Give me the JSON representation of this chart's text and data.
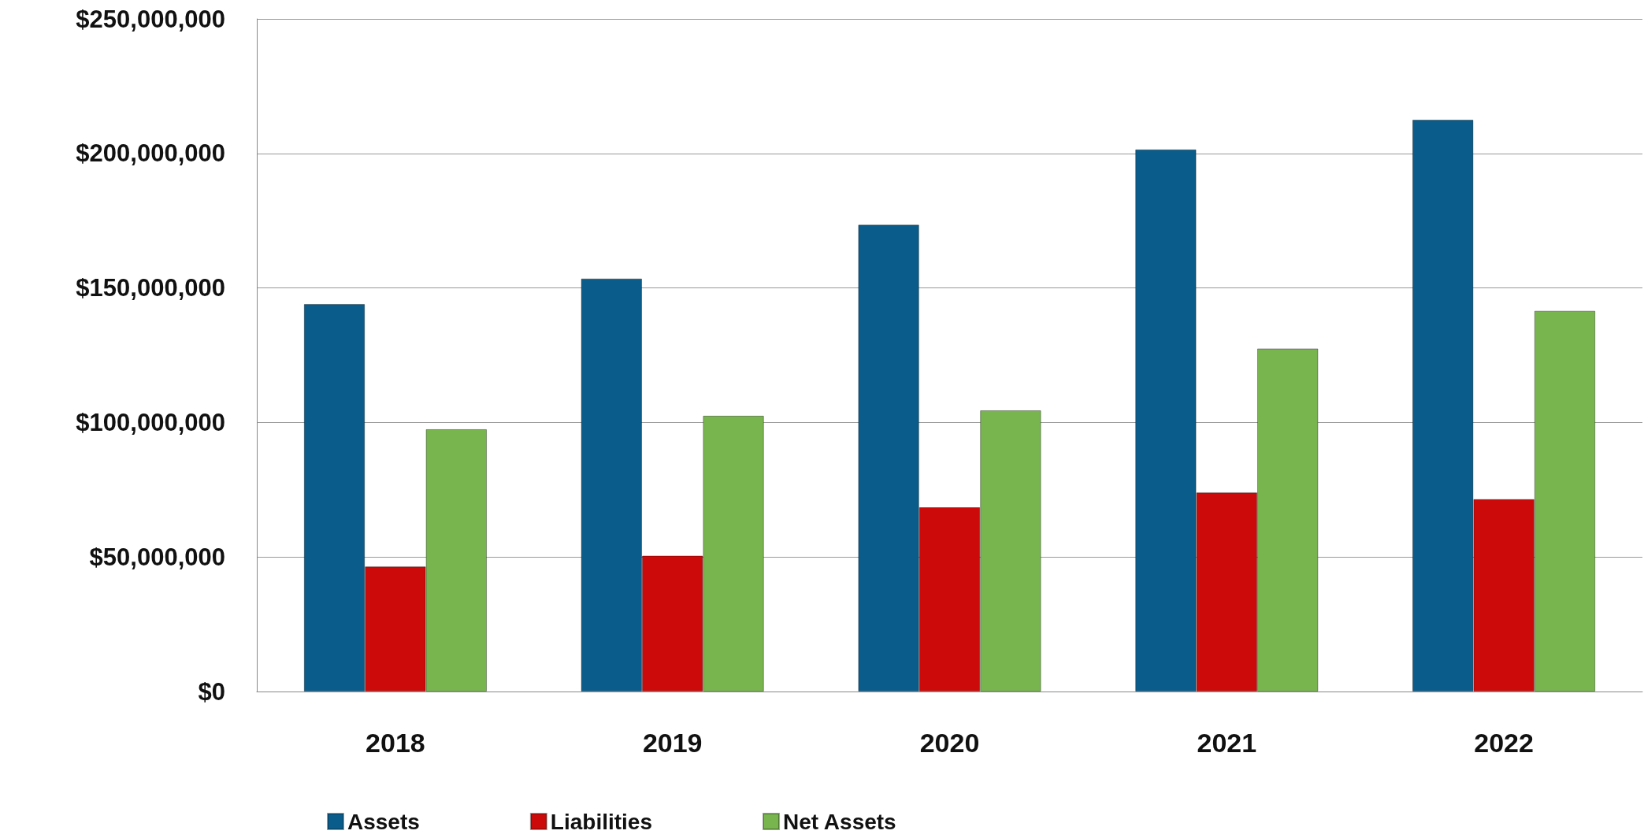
{
  "chart_data": {
    "type": "bar",
    "categories": [
      "2018",
      "2019",
      "2020",
      "2021",
      "2022"
    ],
    "series": [
      {
        "name": "Assets",
        "color": "#0a5c8a",
        "values": [
          144000000,
          153500000,
          173500000,
          201500000,
          212500000
        ]
      },
      {
        "name": "Liabilities",
        "color": "#cc0a0a",
        "values": [
          46500000,
          50500000,
          68500000,
          74000000,
          71500000
        ]
      },
      {
        "name": "Net Assets",
        "color": "#78b54e",
        "values": [
          97500000,
          102500000,
          104500000,
          127500000,
          141500000
        ]
      }
    ],
    "ylim": [
      0,
      250000000
    ],
    "yticks": [
      {
        "value": 0,
        "label": "$0"
      },
      {
        "value": 50000000,
        "label": "$50,000,000"
      },
      {
        "value": 100000000,
        "label": "$100,000,000"
      },
      {
        "value": 150000000,
        "label": "$150,000,000"
      },
      {
        "value": 200000000,
        "label": "$200,000,000"
      },
      {
        "value": 250000000,
        "label": "$250,000,000"
      }
    ],
    "grid": "y",
    "legend": "bottom left"
  }
}
